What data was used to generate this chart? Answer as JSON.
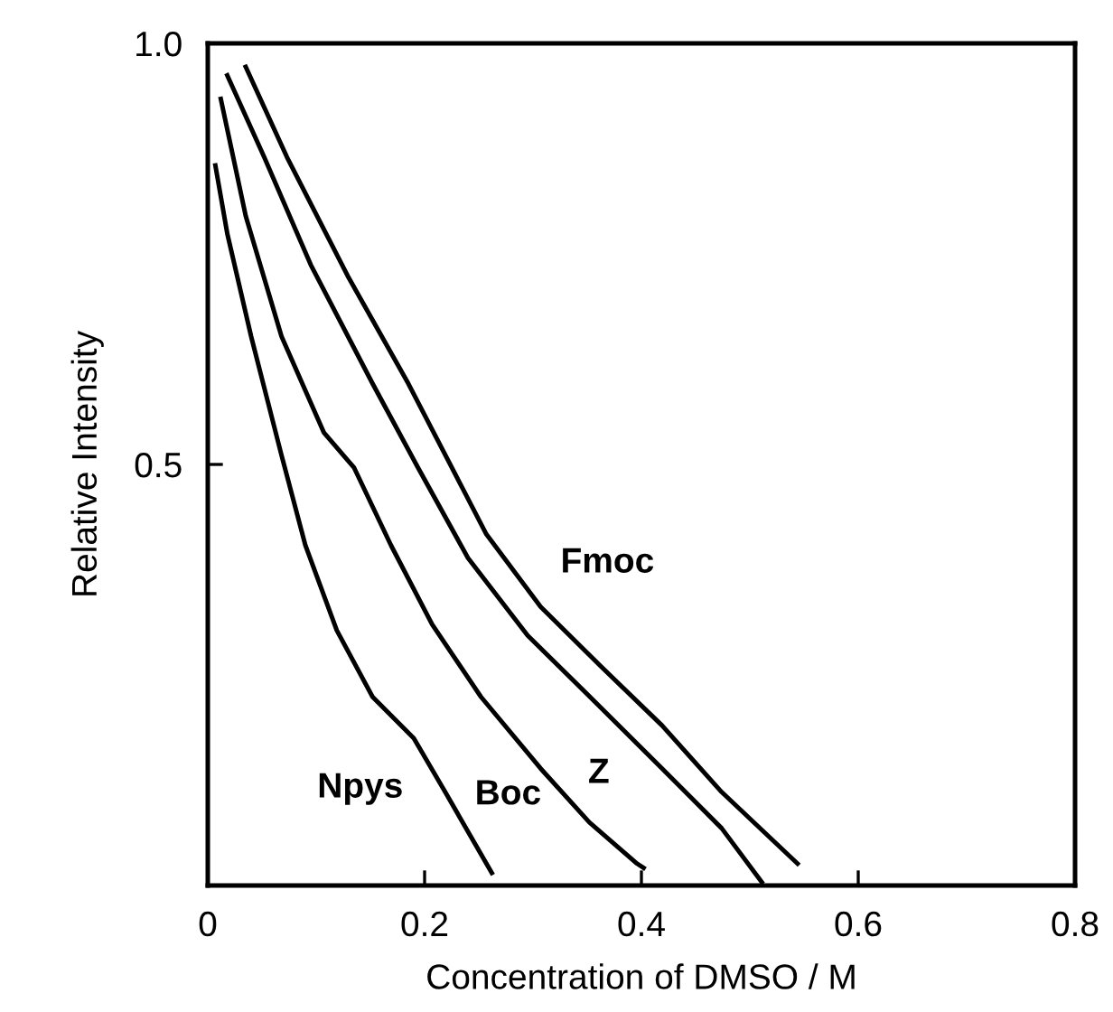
{
  "chart_data": {
    "type": "line",
    "xlabel": "Concentration of DMSO / M",
    "ylabel": "Relative Intensity",
    "xlim": [
      0,
      0.8
    ],
    "ylim": [
      0,
      1.0
    ],
    "xticks": [
      0,
      0.2,
      0.4,
      0.6,
      0.8
    ],
    "yticks": [
      {
        "value": 0,
        "label": null
      },
      0.5,
      {
        "value": 1.0,
        "label": "1.0"
      }
    ],
    "grid": false,
    "legend": false,
    "marker": "none",
    "line_style": "solid",
    "series": [
      {
        "name": "Npys",
        "color": "#000000",
        "x": [
          0.007,
          0.018,
          0.04,
          0.068,
          0.09,
          0.119,
          0.152,
          0.19,
          0.219,
          0.262
        ],
        "values": [
          0.855,
          0.774,
          0.652,
          0.511,
          0.404,
          0.303,
          0.224,
          0.175,
          0.111,
          0.015
        ]
      },
      {
        "name": "Boc",
        "color": "#000000",
        "x": [
          0.012,
          0.035,
          0.068,
          0.107,
          0.135,
          0.169,
          0.207,
          0.252,
          0.307,
          0.352,
          0.396,
          0.402
        ],
        "values": [
          0.934,
          0.795,
          0.652,
          0.538,
          0.496,
          0.404,
          0.31,
          0.224,
          0.139,
          0.075,
          0.026,
          0.021
        ]
      },
      {
        "name": "Z",
        "color": "#000000",
        "x": [
          0.018,
          0.052,
          0.095,
          0.152,
          0.194,
          0.24,
          0.295,
          0.362,
          0.419,
          0.474,
          0.511
        ],
        "values": [
          0.962,
          0.865,
          0.737,
          0.596,
          0.496,
          0.389,
          0.297,
          0.212,
          0.139,
          0.068,
          0.004
        ]
      },
      {
        "name": "Fmoc",
        "color": "#000000",
        "x": [
          0.035,
          0.073,
          0.129,
          0.185,
          0.257,
          0.307,
          0.362,
          0.419,
          0.474,
          0.544
        ],
        "values": [
          0.972,
          0.865,
          0.724,
          0.596,
          0.417,
          0.331,
          0.261,
          0.19,
          0.111,
          0.026
        ]
      }
    ]
  }
}
